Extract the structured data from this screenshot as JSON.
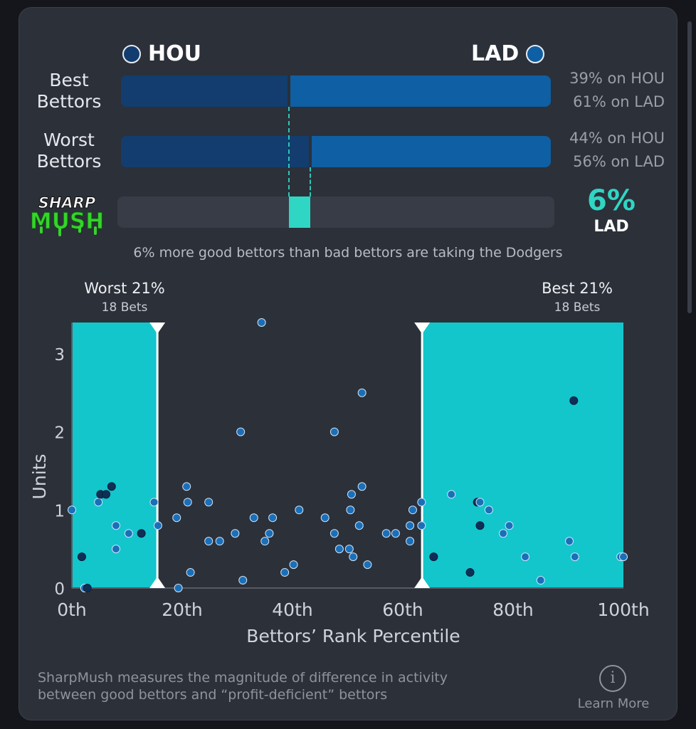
{
  "header": {
    "team_left": "HOU",
    "team_right": "LAD",
    "team_left_color": "#123d6e",
    "team_right_color": "#0e5fa3"
  },
  "rows": [
    {
      "label_line1": "Best",
      "label_line2": "Bettors",
      "hou_pct": 39,
      "lad_pct": 61,
      "hou_text": "39% on HOU",
      "lad_text": "61% on LAD"
    },
    {
      "label_line1": "Worst",
      "label_line2": "Bettors",
      "hou_pct": 44,
      "lad_pct": 56,
      "hou_text": "44% on HOU",
      "lad_text": "56% on LAD"
    }
  ],
  "sharpmush": {
    "logo_line1": "SHARP",
    "logo_line2": "MUSH",
    "value_text": "6%",
    "team": "LAD",
    "accent": "#2fd6c3",
    "logo_green": "#35d42a",
    "caption": "6% more good bettors than bad bettors are taking the Dodgers"
  },
  "chart_data": {
    "type": "scatter",
    "xlabel": "Bettors’ Rank Percentile",
    "ylabel": "Units",
    "xlim": [
      0,
      100
    ],
    "ylim": [
      0,
      3.4
    ],
    "x_ticks": [
      0,
      20,
      40,
      60,
      80,
      100
    ],
    "x_tick_labels": [
      "0th",
      "20th",
      "40th",
      "60th",
      "80th",
      "100th"
    ],
    "y_ticks": [
      0,
      1,
      2,
      3
    ],
    "y_tick_labels": [
      "0",
      "1",
      "2",
      "3"
    ],
    "worst_cutoff": 15.5,
    "best_cutoff": 63.5,
    "worst_label": "Worst 21%",
    "worst_bets": "18 Bets",
    "best_label": "Best 21%",
    "best_bets": "18 Bets",
    "band_color": "#12c6cc",
    "points": [
      {
        "x": 0,
        "y": 1.0,
        "dark": false
      },
      {
        "x": 1.8,
        "y": 0.4,
        "dark": true
      },
      {
        "x": 2.3,
        "y": 0.0,
        "dark": false
      },
      {
        "x": 2.8,
        "y": 0.0,
        "dark": true
      },
      {
        "x": 4.8,
        "y": 1.1,
        "dark": false
      },
      {
        "x": 5.2,
        "y": 1.2,
        "dark": true
      },
      {
        "x": 6.2,
        "y": 1.2,
        "dark": true
      },
      {
        "x": 7.2,
        "y": 1.3,
        "dark": true
      },
      {
        "x": 8.0,
        "y": 0.8,
        "dark": false
      },
      {
        "x": 8.0,
        "y": 0.5,
        "dark": false
      },
      {
        "x": 10.3,
        "y": 0.7,
        "dark": false
      },
      {
        "x": 12.6,
        "y": 0.7,
        "dark": true
      },
      {
        "x": 14.9,
        "y": 1.1,
        "dark": false
      },
      {
        "x": 15.6,
        "y": 0.8,
        "dark": false
      },
      {
        "x": 19.0,
        "y": 0.9,
        "dark": false
      },
      {
        "x": 19.3,
        "y": 0.0,
        "dark": false
      },
      {
        "x": 20.8,
        "y": 1.3,
        "dark": false
      },
      {
        "x": 21.0,
        "y": 1.1,
        "dark": false
      },
      {
        "x": 21.5,
        "y": 0.2,
        "dark": false
      },
      {
        "x": 24.8,
        "y": 1.1,
        "dark": false
      },
      {
        "x": 24.8,
        "y": 0.6,
        "dark": false
      },
      {
        "x": 26.8,
        "y": 0.6,
        "dark": false
      },
      {
        "x": 29.6,
        "y": 0.7,
        "dark": false
      },
      {
        "x": 30.6,
        "y": 2.0,
        "dark": false
      },
      {
        "x": 31.0,
        "y": 0.1,
        "dark": false
      },
      {
        "x": 33.0,
        "y": 0.9,
        "dark": false
      },
      {
        "x": 34.4,
        "y": 3.4,
        "dark": false
      },
      {
        "x": 35.0,
        "y": 0.6,
        "dark": false
      },
      {
        "x": 35.8,
        "y": 0.7,
        "dark": false
      },
      {
        "x": 36.4,
        "y": 0.9,
        "dark": false
      },
      {
        "x": 38.6,
        "y": 0.2,
        "dark": false
      },
      {
        "x": 40.2,
        "y": 0.3,
        "dark": false
      },
      {
        "x": 41.2,
        "y": 1.0,
        "dark": false
      },
      {
        "x": 45.9,
        "y": 0.9,
        "dark": false
      },
      {
        "x": 47.6,
        "y": 2.0,
        "dark": false
      },
      {
        "x": 47.6,
        "y": 0.7,
        "dark": false
      },
      {
        "x": 48.5,
        "y": 0.5,
        "dark": false
      },
      {
        "x": 50.3,
        "y": 0.5,
        "dark": false
      },
      {
        "x": 50.5,
        "y": 1.0,
        "dark": false
      },
      {
        "x": 50.7,
        "y": 1.2,
        "dark": false
      },
      {
        "x": 51.0,
        "y": 0.4,
        "dark": false
      },
      {
        "x": 52.1,
        "y": 0.8,
        "dark": false
      },
      {
        "x": 52.6,
        "y": 2.5,
        "dark": false
      },
      {
        "x": 52.6,
        "y": 1.3,
        "dark": false
      },
      {
        "x": 53.6,
        "y": 0.3,
        "dark": false
      },
      {
        "x": 57.0,
        "y": 0.7,
        "dark": false
      },
      {
        "x": 58.7,
        "y": 0.7,
        "dark": false
      },
      {
        "x": 61.3,
        "y": 0.8,
        "dark": false
      },
      {
        "x": 61.3,
        "y": 0.6,
        "dark": false
      },
      {
        "x": 61.8,
        "y": 1.0,
        "dark": false
      },
      {
        "x": 63.4,
        "y": 1.1,
        "dark": false
      },
      {
        "x": 63.4,
        "y": 0.8,
        "dark": false
      },
      {
        "x": 65.6,
        "y": 0.4,
        "dark": true
      },
      {
        "x": 68.8,
        "y": 1.2,
        "dark": false
      },
      {
        "x": 72.2,
        "y": 0.2,
        "dark": true
      },
      {
        "x": 73.5,
        "y": 1.1,
        "dark": true
      },
      {
        "x": 74.0,
        "y": 0.8,
        "dark": true
      },
      {
        "x": 74.0,
        "y": 1.1,
        "dark": false
      },
      {
        "x": 75.6,
        "y": 1.0,
        "dark": false
      },
      {
        "x": 78.2,
        "y": 0.7,
        "dark": false
      },
      {
        "x": 79.3,
        "y": 0.8,
        "dark": false
      },
      {
        "x": 82.2,
        "y": 0.4,
        "dark": false
      },
      {
        "x": 85.0,
        "y": 0.1,
        "dark": false
      },
      {
        "x": 90.2,
        "y": 0.6,
        "dark": false
      },
      {
        "x": 91.0,
        "y": 2.4,
        "dark": true
      },
      {
        "x": 91.2,
        "y": 0.4,
        "dark": false
      },
      {
        "x": 99.5,
        "y": 0.4,
        "dark": false
      },
      {
        "x": 100,
        "y": 0.4,
        "dark": false
      }
    ]
  },
  "footer": {
    "line1": "SharpMush measures the magnitude of difference in activity",
    "line2": "between good bettors and “profit-deficient” bettors",
    "info_glyph": "i",
    "learn_more": "Learn More"
  }
}
